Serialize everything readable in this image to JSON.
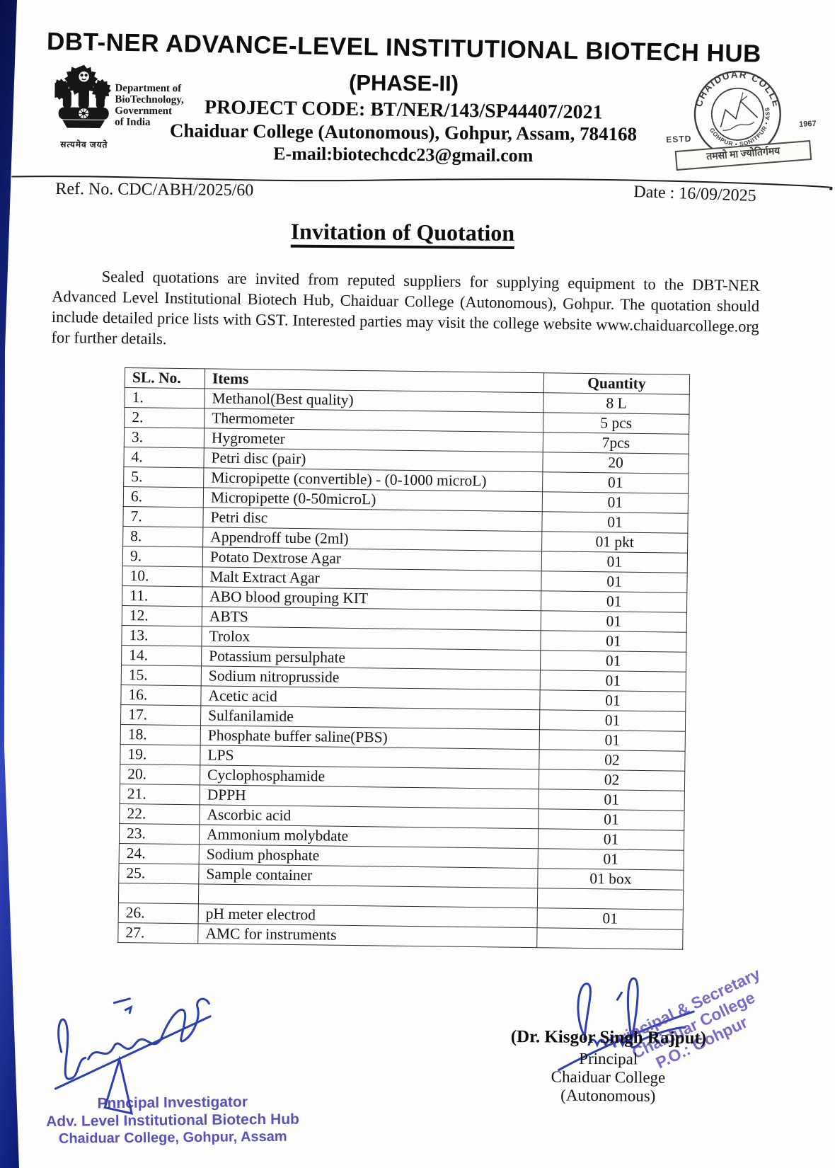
{
  "page": {
    "header": {
      "title": "DBT-NER ADVANCE-LEVEL INSTITUTIONAL BIOTECH HUB",
      "phase": "(PHASE-II)",
      "project_code": "PROJECT CODE: BT/NER/143/SP44407/2021",
      "college_line": "Chaiduar College (Autonomous), Gohpur, Assam, 784168",
      "email_line": "E-mail:biotechcdc23@gmail.com",
      "left_emblem": {
        "icon": "india-state-emblem",
        "dept_lines": "Department of\nBioTechnology,\nGovernment\nof India",
        "motto": "सत्यमेव जयते"
      },
      "right_seal": {
        "icon": "chaiduar-college-seal",
        "arc_top": "CHAIDUAR COLLEGE",
        "arc_bottom": "GOHPUR • SONITPUR • ASSAM",
        "estd": "ESTD",
        "year": "1967",
        "banner": "तमसो मा ज्योतिर्गमय"
      }
    },
    "ref_no": "Ref. No. CDC/ABH/2025/60",
    "date": "Date : 16/09/2025",
    "doc_title": "Invitation of Quotation",
    "body_paragraph": "Sealed quotations are invited from reputed suppliers for supplying equipment to the DBT-NER Advanced Level Institutional Biotech Hub, Chaiduar College (Autonomous), Gohpur. The quotation should include detailed price lists with GST. Interested parties may visit the college website www.chaiduarcollege.org for further details.",
    "table": {
      "headers": [
        "SL. No.",
        "Items",
        "Quantity"
      ],
      "rows": [
        [
          "1.",
          "Methanol(Best quality)",
          "8 L"
        ],
        [
          "2.",
          "Thermometer",
          "5 pcs"
        ],
        [
          "3.",
          "Hygrometer",
          "7pcs"
        ],
        [
          "4.",
          "Petri disc (pair)",
          "20"
        ],
        [
          "5.",
          "Micropipette (convertible) - (0-1000 microL)",
          "01"
        ],
        [
          "6.",
          "Micropipette (0-50microL)",
          "01"
        ],
        [
          "7.",
          "Petri disc",
          "01"
        ],
        [
          "8.",
          "Appendroff tube (2ml)",
          "01 pkt"
        ],
        [
          "9.",
          "Potato Dextrose Agar",
          "01"
        ],
        [
          "10.",
          "Malt Extract Agar",
          "01"
        ],
        [
          "11.",
          "ABO blood grouping KIT",
          "01"
        ],
        [
          "12.",
          "ABTS",
          "01"
        ],
        [
          "13.",
          "Trolox",
          "01"
        ],
        [
          "14.",
          "Potassium persulphate",
          "01"
        ],
        [
          "15.",
          "Sodium nitroprusside",
          "01"
        ],
        [
          "16.",
          "Acetic acid",
          "01"
        ],
        [
          "17.",
          "Sulfanilamide",
          "01"
        ],
        [
          "18.",
          "Phosphate buffer saline(PBS)",
          "01"
        ],
        [
          "19.",
          "LPS",
          "02"
        ],
        [
          "20.",
          "Cyclophosphamide",
          "02"
        ],
        [
          "21.",
          "DPPH",
          "01"
        ],
        [
          "22.",
          "Ascorbic acid",
          "01"
        ],
        [
          "23.",
          "Ammonium molybdate",
          "01"
        ],
        [
          "24.",
          "Sodium phosphate",
          "01"
        ],
        [
          "25.",
          "Sample container",
          "01 box"
        ],
        [
          "",
          "",
          ""
        ],
        [
          "26.",
          "pH meter electrod",
          "01"
        ],
        [
          "27.",
          "AMC for instruments",
          ""
        ]
      ]
    },
    "signatures": {
      "left": {
        "stamp_line1": "Pnncipal Investigator",
        "stamp_line2": "Adv. Level Institutional Biotech Hub",
        "stamp_line3": "Chaiduar College, Gohpur, Assam"
      },
      "right": {
        "stamp_line1": "Principal & Secretary",
        "stamp_line2": "Chaiduar College",
        "stamp_line3": "P.O.: Gohpur",
        "name": "(Dr. Kisgor Singh Rajput)",
        "role": "Principal",
        "college": "Chaiduar College",
        "autonomous": "(Autonomous)"
      }
    },
    "colors": {
      "ink_black": "#0d0d0d",
      "stamp_blue": "#4a42b0",
      "pen_blue": "#2b3fae",
      "edge_blue": "#1b2f9f"
    }
  }
}
